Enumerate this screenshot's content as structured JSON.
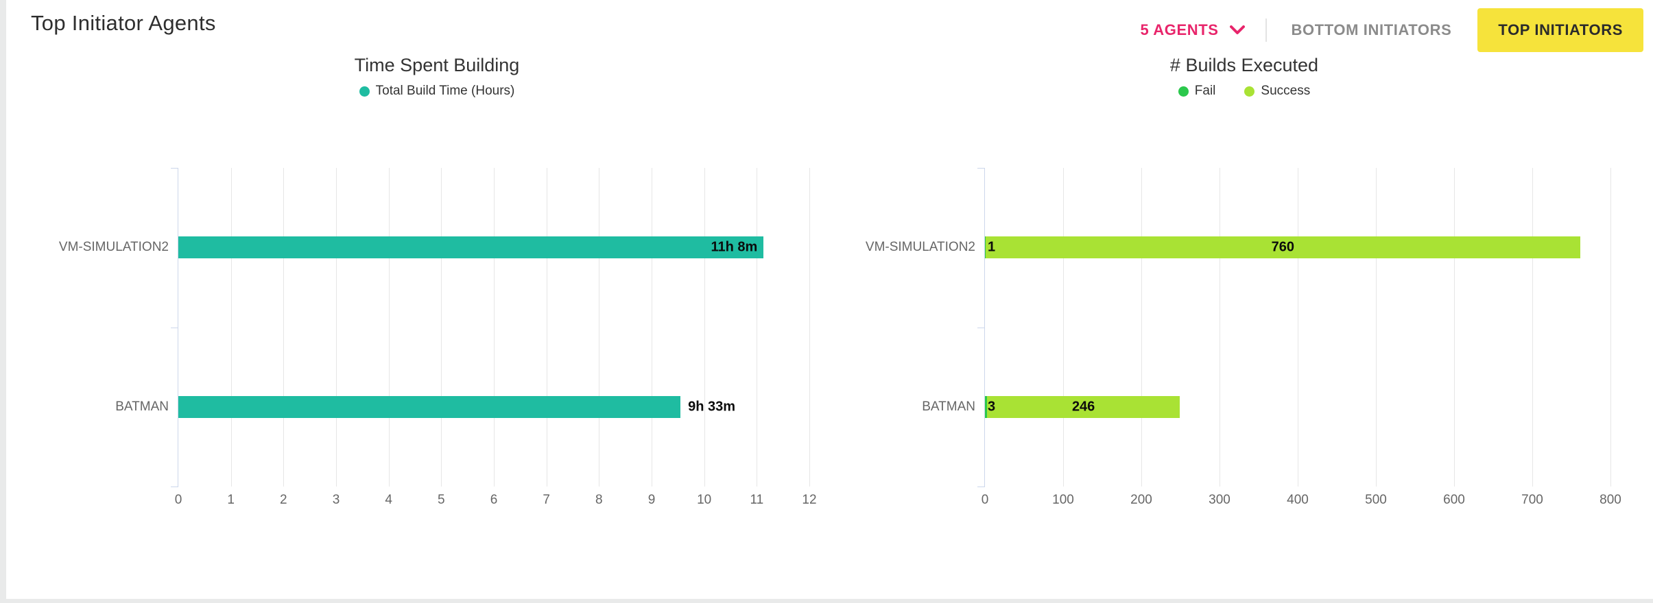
{
  "header": {
    "title": "Top Initiator Agents",
    "agents_dropdown": {
      "label": "5 AGENTS",
      "color": "#E8256B"
    },
    "tabs": [
      {
        "label": "BOTTOM INITIATORS",
        "active": false
      },
      {
        "label": "TOP INITIATORS",
        "active": true,
        "active_bg": "#F6E33B"
      }
    ]
  },
  "axis_style": {
    "axis_line_color": "#CCD6EB",
    "grid_color": "#E6E6E6",
    "tick_label_color": "#666666",
    "category_label_color": "#666666"
  },
  "chart_data": [
    {
      "type": "bar",
      "orientation": "horizontal",
      "title": "Time Spent Building",
      "categories": [
        "VM-SIMULATION2",
        "BATMAN"
      ],
      "series": [
        {
          "name": "Total Build Time (Hours)",
          "color": "#1FBCA1",
          "values": [
            11.13,
            9.55
          ],
          "value_labels": [
            "11h 8m",
            "9h 33m"
          ],
          "label_positions": [
            "inside-end",
            "outside-end"
          ]
        }
      ],
      "xlabel": "",
      "ylabel": "",
      "xlim": [
        0,
        12
      ],
      "xticks": [
        0,
        1,
        2,
        3,
        4,
        5,
        6,
        7,
        8,
        9,
        10,
        11,
        12
      ],
      "grid": true,
      "legend_position": "top"
    },
    {
      "type": "bar",
      "orientation": "horizontal",
      "stacked": true,
      "title": "# Builds Executed",
      "categories": [
        "VM-SIMULATION2",
        "BATMAN"
      ],
      "series": [
        {
          "name": "Fail",
          "color": "#2BC84C",
          "values": [
            1,
            3
          ],
          "value_labels": [
            "1",
            "3"
          ],
          "label_positions": [
            "start",
            "start"
          ]
        },
        {
          "name": "Success",
          "color": "#A9E234",
          "values": [
            760,
            246
          ],
          "value_labels": [
            "760",
            "246"
          ],
          "label_positions": [
            "center",
            "center"
          ]
        }
      ],
      "xlabel": "",
      "ylabel": "",
      "xlim": [
        0,
        800
      ],
      "xticks": [
        0,
        100,
        200,
        300,
        400,
        500,
        600,
        700,
        800
      ],
      "grid": true,
      "legend_position": "top"
    }
  ]
}
